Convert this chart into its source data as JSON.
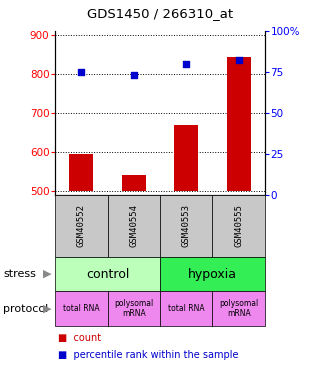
{
  "title": "GDS1450 / 266310_at",
  "samples": [
    "GSM40552",
    "GSM40554",
    "GSM40553",
    "GSM40555"
  ],
  "counts": [
    594,
    541,
    669,
    843
  ],
  "percentiles": [
    75,
    73,
    80,
    82
  ],
  "ylim_left": [
    490,
    910
  ],
  "ylim_right": [
    0,
    100
  ],
  "yticks_left": [
    500,
    600,
    700,
    800,
    900
  ],
  "yticks_right": [
    0,
    25,
    50,
    75,
    100
  ],
  "ytick_labels_right": [
    "0",
    "25",
    "50",
    "75",
    "100%"
  ],
  "bar_color": "#cc0000",
  "dot_color": "#0000cc",
  "stress_labels": [
    "control",
    "hypoxia"
  ],
  "control_color": "#bbffbb",
  "hypoxia_color": "#33ee55",
  "protocol_labels": [
    "total RNA",
    "polysomal\nmRNA",
    "total RNA",
    "polysomal\nmRNA"
  ],
  "protocol_color": "#ee88ee",
  "sample_bg": "#c8c8c8",
  "legend_count_color": "#cc0000",
  "legend_pct_color": "#0000cc",
  "bar_bottom": 500
}
